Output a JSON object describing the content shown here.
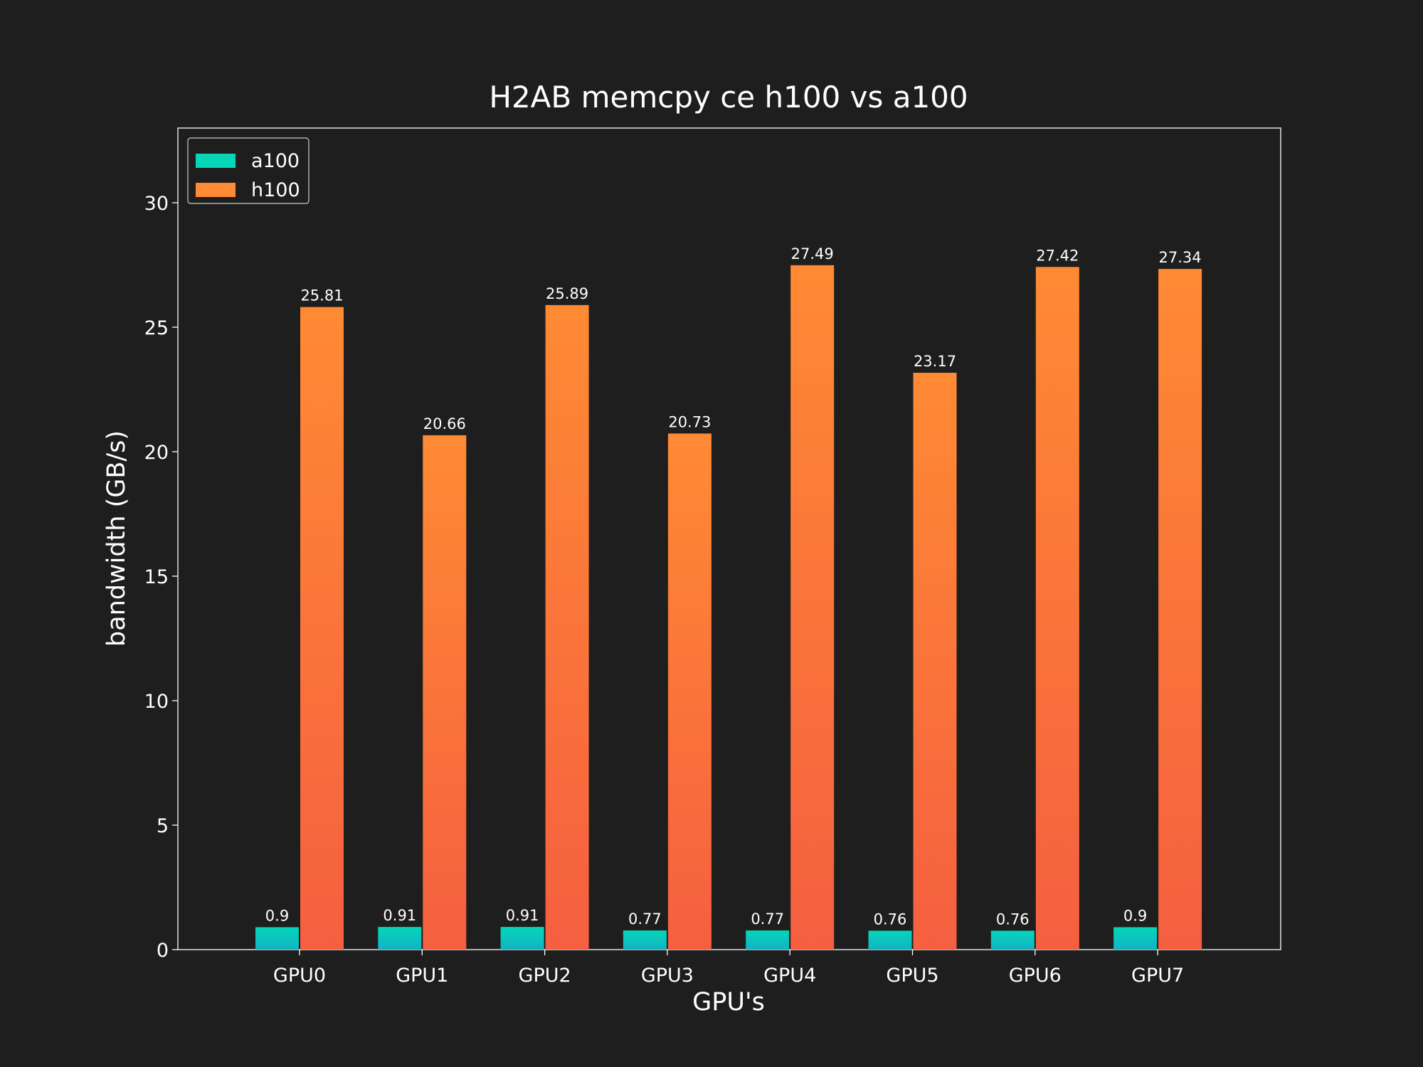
{
  "chart_data": {
    "type": "bar",
    "title": "H2AB memcpy ce h100 vs a100",
    "xlabel": "GPU's",
    "ylabel": "bandwidth (GB/s)",
    "categories": [
      "GPU0",
      "GPU1",
      "GPU2",
      "GPU3",
      "GPU4",
      "GPU5",
      "GPU6",
      "GPU7"
    ],
    "series": [
      {
        "name": "a100",
        "values": [
          0.9,
          0.91,
          0.91,
          0.77,
          0.77,
          0.76,
          0.76,
          0.9
        ],
        "color_top": "#05d6b8",
        "color_bottom": "#12b3c3"
      },
      {
        "name": "h100",
        "values": [
          25.81,
          20.66,
          25.89,
          20.73,
          27.49,
          23.17,
          27.42,
          27.34
        ],
        "color_top": "#ff8a34",
        "color_bottom": "#f55f40"
      }
    ],
    "ylim": [
      0,
      33
    ],
    "yticks": [
      0,
      5,
      10,
      15,
      20,
      25,
      30
    ],
    "grid": false,
    "legend_position": "top-left",
    "background": "#1e1e1e",
    "axis_color": "#ffffff"
  }
}
